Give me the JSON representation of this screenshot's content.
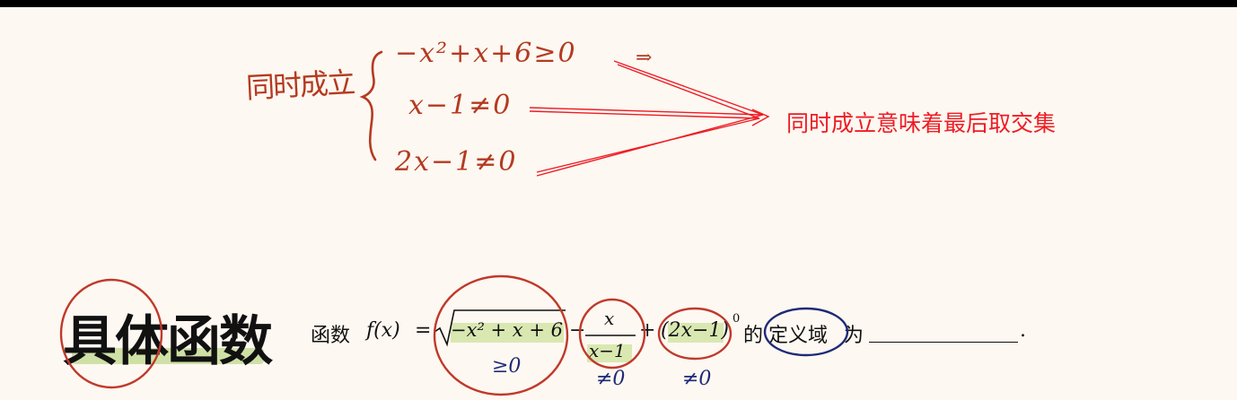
{
  "handwriting": {
    "label": "同时成立",
    "line1": "−x²+x+6≥0",
    "arrow_symbol": "⇒",
    "line2": "x−1≠0",
    "line3": "2x−1≠0"
  },
  "annotation": {
    "text": "同时成立意味着最后取交集",
    "color": "#ee1c25"
  },
  "brand": {
    "text": "具体函数"
  },
  "problem": {
    "prefix": "函数",
    "func": "f(x)",
    "equals": "=",
    "sqrt_radicand": "−x² + x + 6",
    "minus1": "−",
    "frac_num": "x",
    "frac_den": "x−1",
    "plus": "+",
    "power_base": "(2x−1)",
    "power_exp": "0",
    "suffix_1": "的",
    "suffix_2": "定义域",
    "suffix_3": "为",
    "period": "."
  },
  "notes": {
    "under_sqrt": "≥0",
    "under_frac": "≠0",
    "under_power": "≠0"
  },
  "colors": {
    "handwriting": "#b43a21",
    "red_circle": "#c0392b",
    "blue_ink": "#1e2a78",
    "highlight": "#d9e8b1",
    "background": "#fdf8f1"
  }
}
